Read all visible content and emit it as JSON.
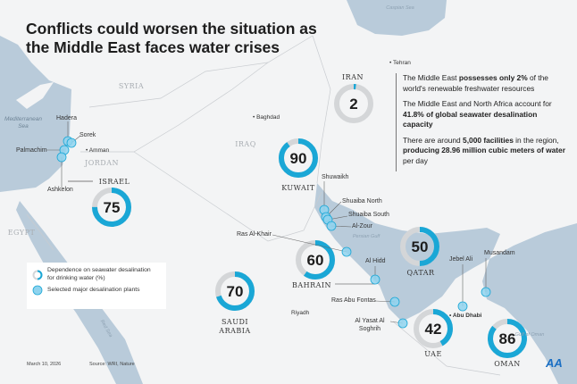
{
  "title": [
    "Conflicts could worsen the situation as",
    "the Middle East faces water crises"
  ],
  "colors": {
    "accent": "#1aa7d6",
    "ring_bg": "#d4d6d8",
    "water": "#b9cbda",
    "land": "#f3f4f5",
    "plant_fill": "#8fd3ee"
  },
  "countries": [
    {
      "name": "IRAN",
      "value": 2,
      "label": "2"
    },
    {
      "name": "KUWAIT",
      "value": 90,
      "label": "90"
    },
    {
      "name": "ISRAEL",
      "value": 75,
      "label": "75"
    },
    {
      "name": "SAUDI",
      "name2": "ARABIA",
      "value": 70,
      "label": "70"
    },
    {
      "name": "BAHRAIN",
      "value": 60,
      "label": "60"
    },
    {
      "name": "QATAR",
      "value": 50,
      "label": "50"
    },
    {
      "name": "UAE",
      "value": 42,
      "label": "42"
    },
    {
      "name": "OMAN",
      "value": 86,
      "label": "86"
    }
  ],
  "other_countries": [
    "SYRIA",
    "IRAQ",
    "JORDAN",
    "EGYPT"
  ],
  "cities": [
    "Tehran",
    "Baghdad",
    "Amman",
    "Riyadh",
    "Abu Dhabi"
  ],
  "seas": [
    "Caspian Sea",
    "Mediterranean Sea",
    "Persian Gulf",
    "Gulf of Oman",
    "Red Sea"
  ],
  "plants": [
    "Hadera",
    "Sorek",
    "Palmachim",
    "Ashkelon",
    "Shuwaikh",
    "Shuaiba North",
    "Shuaiba South",
    "Al-Zour",
    "Ras Al-Khair",
    "Al Hidd",
    "Ras Abu Fontas",
    "Al Yasat Al Soghrih",
    "Jebel Ali",
    "Musandam"
  ],
  "info": [
    {
      "pre": "The Middle East ",
      "bold": "possesses only 2%",
      "post": " of the world's renewable freshwater resources"
    },
    {
      "pre": "The Middle East and North Africa account for ",
      "bold": "41.8% of global seawater desalination capacity",
      "post": ""
    },
    {
      "pre": "There are around ",
      "bold": "5,000 facilities",
      "mid": " in the region, ",
      "bold2": "producing 28.96 million cubic meters of water",
      "post": " per day"
    }
  ],
  "legend": {
    "ring": "Dependence on seawater desalination for drinking water (%)",
    "plant": "Selected major desalination plants"
  },
  "footer": {
    "date": "March 10, 2026",
    "source": "Source: WRI, Nature",
    "logo": "AA"
  }
}
